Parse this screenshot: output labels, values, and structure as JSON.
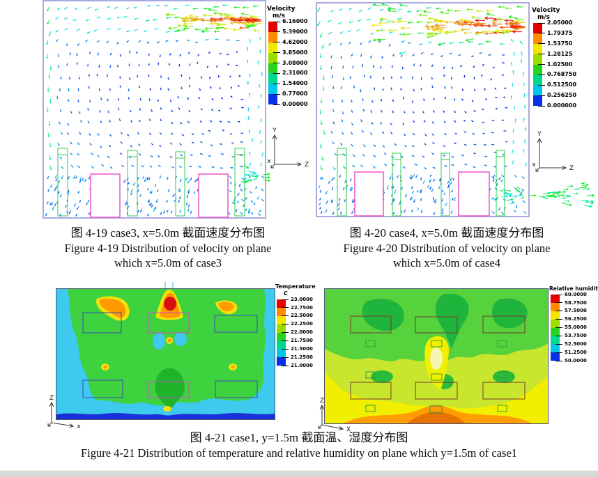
{
  "figures": {
    "fig19": {
      "caption_cn": "图 4-19  case3, x=5.0m 截面速度分布图",
      "caption_en_line1": "Figure 4-19 Distribution of velocity on plane",
      "caption_en_line2": "which x=5.0m of case3",
      "legend": {
        "title": "Velocity",
        "unit": "m/s",
        "values": [
          "6.16000",
          "5.39000",
          "4.62000",
          "3.85000",
          "3.08000",
          "2.31000",
          "1.54000",
          "0.77000",
          "0.00000"
        ]
      },
      "axes": {
        "up": "Y",
        "right": "Z",
        "origin": "x"
      }
    },
    "fig20": {
      "caption_cn": "图 4-20  case4, x=5.0m 截面速度分布图",
      "caption_en_line1": "Figure 4-20 Distribution of velocity on plane",
      "caption_en_line2": "which x=5.0m of case4",
      "legend": {
        "title": "Velocity",
        "unit": "m/s",
        "values": [
          "2.05000",
          "1.79375",
          "1.53750",
          "1.28125",
          "1.02500",
          "0.768750",
          "0.512500",
          "0.256250",
          "0.000000"
        ]
      },
      "axes": {
        "up": "Y",
        "right": "Z",
        "origin": "x"
      }
    },
    "fig21": {
      "caption_cn": "图 4-21  case1, y=1.5m 截面温、湿度分布图",
      "caption_en": "Figure 4-21 Distribution of temperature and relative humidity on plane which y=1.5m of case1",
      "temperature_legend": {
        "title": "Temperature",
        "unit": "C",
        "values": [
          "23.0000",
          "22.7500",
          "22.5000",
          "22.2500",
          "22.0000",
          "21.7500",
          "21.5000",
          "21.2500",
          "21.0000"
        ]
      },
      "humidity_legend": {
        "title": "Relative humidity",
        "values": [
          "60.0000",
          "58.7500",
          "57.5000",
          "56.2500",
          "55.0000",
          "53.7500",
          "52.5000",
          "51.2500",
          "50.0000"
        ]
      },
      "axes_temp": {
        "up": "Z",
        "right": "x"
      },
      "axes_hum": {
        "up": "Z",
        "right": "X"
      }
    }
  },
  "colors": {
    "colorbar_bands": [
      "#e60000",
      "#ff8c00",
      "#f2e500",
      "#9ade00",
      "#27d31f",
      "#00d88e",
      "#00c6e8",
      "#0a2fe8"
    ],
    "vector_plot_border": "#a9a9e2",
    "obstacle_outline_magenta": "#ee55cc",
    "vegetation_green": "#2ecc52",
    "contour_cyan": "#3ec9ef",
    "contour_green": "#3fd23f",
    "contour_yellow": "#f2ee00",
    "contour_orange": "#ff9a00",
    "contour_red": "#d80f0f",
    "contour_deep_blue": "#1b2fd9"
  },
  "chart_data": [
    {
      "type": "heatmap",
      "subtype": "vector-field",
      "title": "图 4-19 case3, x=5.0m 截面速度分布图 / Figure 4-19 Distribution of velocity on plane which x=5.0m of case3",
      "colorbar_label": "Velocity",
      "colorbar_unit": "m/s",
      "colorbar_ticks": [
        6.16,
        5.39,
        4.62,
        3.85,
        3.08,
        2.31,
        1.54,
        0.77,
        0.0
      ],
      "value_range": [
        0.0,
        6.16
      ],
      "axes": {
        "vertical": "Y",
        "horizontal": "Z",
        "out_of_plane": "X"
      },
      "annotations": [
        "high-velocity supply jet enters at upper-right and flows left along ceiling",
        "recirculating low-velocity flow fills the room",
        "two white obstacles with magenta outlines and four green plant racks on the floor",
        "exhaust outlet on lower right wall"
      ]
    },
    {
      "type": "heatmap",
      "subtype": "vector-field",
      "title": "图 4-20 case4, x=5.0m 截面速度分布图 / Figure 4-20 Distribution of velocity on plane which x=5.0m of case4",
      "colorbar_label": "Velocity",
      "colorbar_unit": "m/s",
      "colorbar_ticks": [
        2.05,
        1.79375,
        1.5375,
        1.28125,
        1.025,
        0.76875,
        0.5125,
        0.25625,
        0.0
      ],
      "value_range": [
        0.0,
        2.05
      ],
      "axes": {
        "vertical": "Y",
        "horizontal": "Z",
        "out_of_plane": "X"
      },
      "annotations": [
        "wide supply jet spreads from upper-right toward left",
        "large recirculation vortex on the left side",
        "exhaust plume leaves through lower right wall"
      ]
    },
    {
      "type": "heatmap",
      "subtype": "filled-contour",
      "title": "Temperature contour on plane y=1.5m of case1",
      "colorbar_label": "Temperature",
      "colorbar_unit": "C",
      "colorbar_ticks": [
        23.0,
        22.75,
        22.5,
        22.25,
        22.0,
        21.75,
        21.5,
        21.25,
        21.0
      ],
      "value_range": [
        21.0,
        23.0
      ],
      "axes": {
        "vertical": "Z",
        "horizontal": "X"
      },
      "annotations": [
        "hot spot (~23 C) at top center with orange halo",
        "green interior ~22 C, cyan borders ~21.5 C",
        "dark blue band ~21 C along bottom edge",
        "six rectangular occupant zones outlined"
      ]
    },
    {
      "type": "heatmap",
      "subtype": "filled-contour",
      "title": "Relative humidity contour on plane y=1.5m of case1",
      "colorbar_label": "Relative humidity",
      "colorbar_ticks": [
        60.0,
        58.75,
        57.5,
        56.25,
        55.0,
        53.75,
        52.5,
        51.25,
        50.0
      ],
      "value_range": [
        50.0,
        60.0
      ],
      "axes": {
        "vertical": "Z",
        "horizontal": "X"
      },
      "annotations": [
        "higher humidity (dark green ~57-58%) pockets near top",
        "yellow ~52-53% zone through center and bottom",
        "orange band ~51% along bottom center",
        "six rectangular zones and small vent rectangles outlined"
      ]
    }
  ]
}
